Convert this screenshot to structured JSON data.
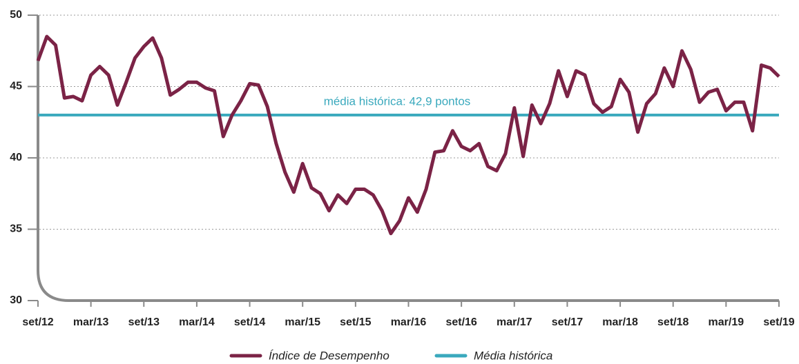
{
  "chart_data": {
    "type": "line",
    "categories": [
      "set/12",
      null,
      null,
      null,
      null,
      null,
      "mar/13",
      null,
      null,
      null,
      null,
      null,
      "set/13",
      null,
      null,
      null,
      null,
      null,
      "mar/14",
      null,
      null,
      null,
      null,
      null,
      "set/14",
      null,
      null,
      null,
      null,
      null,
      "mar/15",
      null,
      null,
      null,
      null,
      null,
      "set/15",
      null,
      null,
      null,
      null,
      null,
      "mar/16",
      null,
      null,
      null,
      null,
      null,
      "set/16",
      null,
      null,
      null,
      null,
      null,
      "mar/17",
      null,
      null,
      null,
      null,
      null,
      "set/17",
      null,
      null,
      null,
      null,
      null,
      "mar/18",
      null,
      null,
      null,
      null,
      null,
      "set/18",
      null,
      null,
      null,
      null,
      null,
      "mar/19",
      null,
      null,
      null,
      null,
      null,
      "set/19"
    ],
    "series": [
      {
        "name": "Índice de Desempenho",
        "color": "#7b2346",
        "values": [
          46.8,
          48.5,
          47.9,
          44.2,
          44.3,
          44.0,
          45.8,
          46.4,
          45.8,
          43.7,
          45.3,
          47.0,
          47.8,
          48.4,
          47.0,
          44.4,
          44.8,
          45.3,
          45.3,
          44.9,
          44.7,
          41.5,
          43.0,
          44.0,
          45.2,
          45.1,
          43.6,
          41.0,
          39.0,
          37.6,
          39.6,
          37.9,
          37.5,
          36.3,
          37.4,
          36.8,
          37.8,
          37.8,
          37.4,
          36.3,
          34.7,
          35.6,
          37.2,
          36.2,
          37.8,
          40.4,
          40.5,
          41.9,
          40.8,
          40.5,
          41.0,
          39.4,
          39.1,
          40.3,
          43.5,
          40.1,
          43.7,
          42.4,
          43.8,
          46.1,
          44.3,
          46.1,
          45.8,
          43.8,
          43.2,
          43.6,
          45.5,
          44.6,
          41.8,
          43.8,
          44.5,
          46.3,
          45.0,
          47.5,
          46.2,
          43.9,
          44.6,
          44.8,
          43.3,
          43.9,
          43.9,
          41.9,
          46.5,
          46.3,
          45.7
        ]
      },
      {
        "name": "Média histórica",
        "color": "#3aa9bd",
        "values": [
          43.0,
          43.0,
          43.0,
          43.0,
          43.0,
          43.0,
          43.0,
          43.0,
          43.0,
          43.0,
          43.0,
          43.0,
          43.0,
          43.0,
          43.0,
          43.0,
          43.0,
          43.0,
          43.0,
          43.0,
          43.0,
          43.0,
          43.0,
          43.0,
          43.0,
          43.0,
          43.0,
          43.0,
          43.0,
          43.0,
          43.0,
          43.0,
          43.0,
          43.0,
          43.0,
          43.0,
          43.0,
          43.0,
          43.0,
          43.0,
          43.0,
          43.0,
          43.0,
          43.0,
          43.0,
          43.0,
          43.0,
          43.0,
          43.0,
          43.0,
          43.0,
          43.0,
          43.0,
          43.0,
          43.0,
          43.0,
          43.0,
          43.0,
          43.0,
          43.0,
          43.0,
          43.0,
          43.0,
          43.0,
          43.0,
          43.0,
          43.0,
          43.0,
          43.0,
          43.0,
          43.0,
          43.0,
          43.0,
          43.0,
          43.0,
          43.0,
          43.0,
          43.0,
          43.0,
          43.0,
          43.0,
          43.0,
          43.0,
          43.0,
          43.0
        ]
      }
    ],
    "annotation": "média histórica: 42,9 pontos",
    "ylim": [
      30,
      50
    ],
    "yticks": [
      30,
      35,
      40,
      45,
      50
    ],
    "grid": true
  }
}
